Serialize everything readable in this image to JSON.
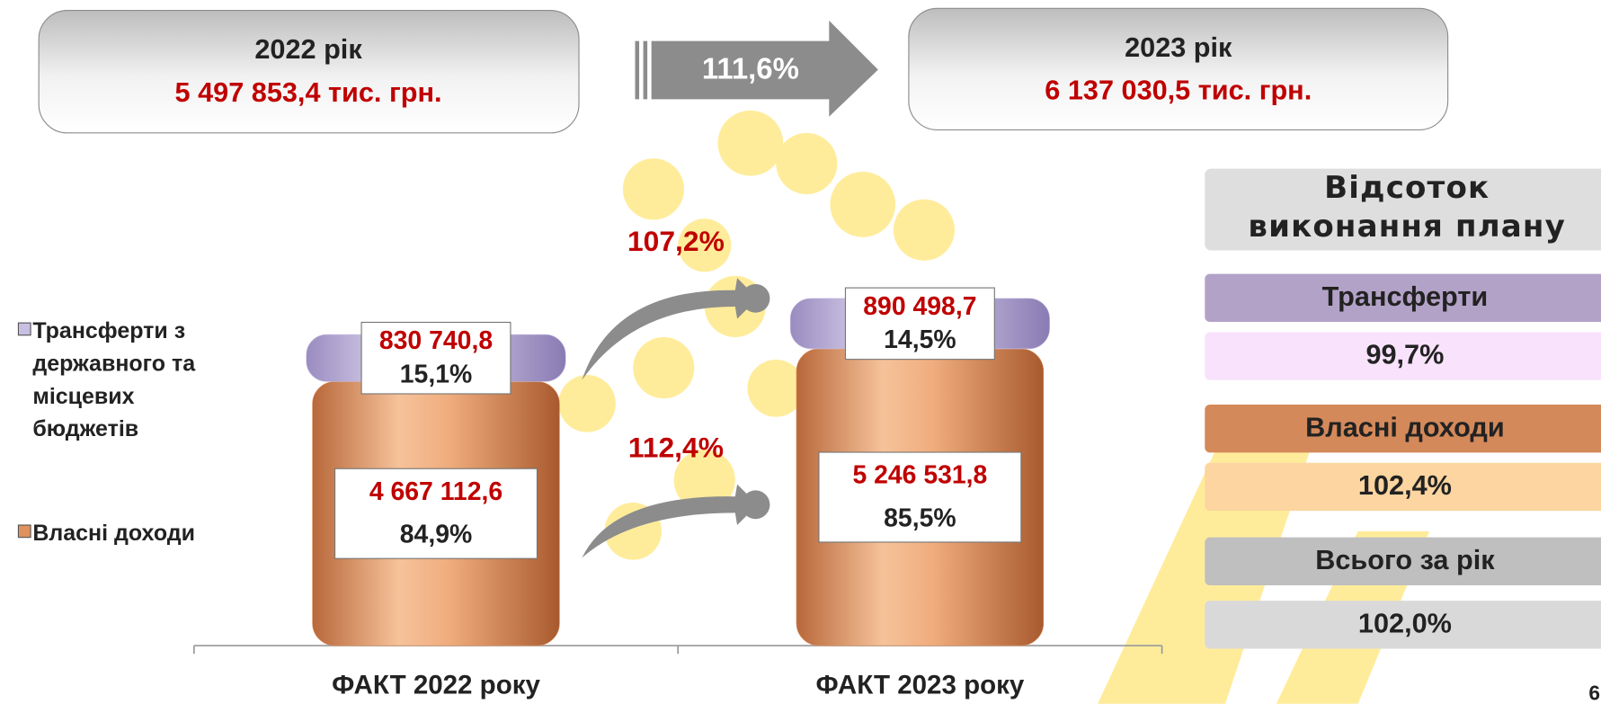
{
  "header": {
    "left": {
      "year": "2022 рік",
      "total": "5 497 853,4 тис. грн."
    },
    "growth": "111,6%",
    "right": {
      "year": "2023 рік",
      "total": "6 137 030,5 тис. грн."
    }
  },
  "chart_data": {
    "type": "bar",
    "stacked": true,
    "categories": [
      "ФАКТ 2022 року",
      "ФАКТ 2023 року"
    ],
    "series": [
      {
        "name": "Власні доходи",
        "color": "#e0925e",
        "values": [
          4667112.6,
          5246531.8
        ],
        "value_labels": [
          "4 667 112,6",
          "5 246 531,8"
        ],
        "shares": [
          84.9,
          85.5
        ],
        "share_labels": [
          "84,9%",
          "85,5%"
        ],
        "growth": [
          112.4
        ],
        "growth_labels": [
          "112,4%"
        ]
      },
      {
        "name": "Трансферти з державного та місцевих бюджетів",
        "color": "#c9bfe2",
        "values": [
          830740.8,
          890498.7
        ],
        "value_labels": [
          "830 740,8",
          "890 498,7"
        ],
        "shares": [
          15.1,
          14.5
        ],
        "share_labels": [
          "15,1%",
          "14,5%"
        ],
        "growth": [
          107.2
        ],
        "growth_labels": [
          "107,2%"
        ]
      }
    ]
  },
  "plan_panel": {
    "title_lines": [
      "Відсоток",
      "виконання плану"
    ],
    "items": [
      {
        "label": "Трансферти",
        "value": "99,7%"
      },
      {
        "label": "Власні доходи",
        "value": "102,4%"
      },
      {
        "label": "Всього за рік",
        "value": "102,0%"
      }
    ]
  },
  "page_number": "6"
}
